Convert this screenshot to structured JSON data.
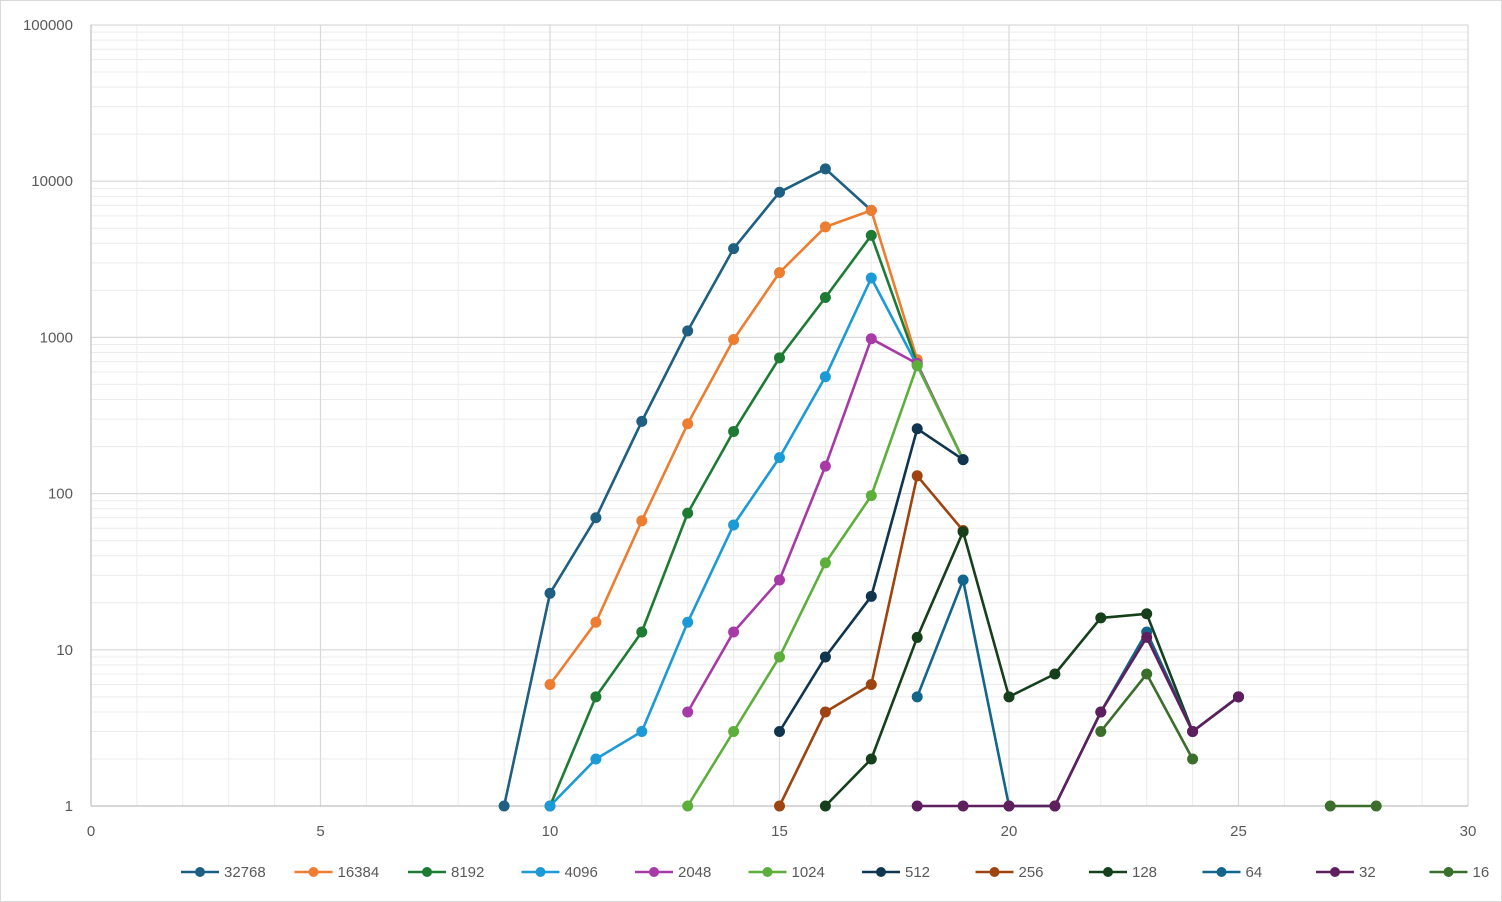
{
  "chart_data": {
    "type": "line",
    "title": "",
    "xlabel": "",
    "ylabel": "",
    "x_scale": "linear",
    "y_scale": "log",
    "xlim": [
      0,
      30
    ],
    "ylim": [
      1,
      100000
    ],
    "x_ticks": [
      "0",
      "5",
      "10",
      "15",
      "20",
      "25",
      "30"
    ],
    "y_ticks": [
      "1",
      "10",
      "100",
      "1000",
      "10000",
      "100000"
    ],
    "grid": true,
    "legend_position": "bottom",
    "series": [
      {
        "name": "32768",
        "color": "#1f5f82",
        "points": [
          [
            9,
            1
          ],
          [
            10,
            23
          ],
          [
            11,
            70
          ],
          [
            12,
            290
          ],
          [
            13,
            1100
          ],
          [
            14,
            3700
          ],
          [
            15,
            8500
          ],
          [
            16,
            12000
          ],
          [
            17,
            6500
          ]
        ]
      },
      {
        "name": "16384",
        "color": "#ed7d31",
        "points": [
          [
            10,
            6
          ],
          [
            11,
            15
          ],
          [
            12,
            67
          ],
          [
            13,
            280
          ],
          [
            14,
            970
          ],
          [
            15,
            2600
          ],
          [
            16,
            5100
          ],
          [
            17,
            6500
          ],
          [
            18,
            720
          ]
        ]
      },
      {
        "name": "8192",
        "color": "#1e7b34",
        "points": [
          [
            10,
            1
          ],
          [
            11,
            5
          ],
          [
            12,
            13
          ],
          [
            13,
            75
          ],
          [
            14,
            250
          ],
          [
            15,
            740
          ],
          [
            16,
            1800
          ],
          [
            17,
            4500
          ],
          [
            18,
            680
          ]
        ]
      },
      {
        "name": "4096",
        "color": "#1c9ad6",
        "points": [
          [
            10,
            1
          ],
          [
            11,
            2
          ],
          [
            12,
            3
          ],
          [
            13,
            15
          ],
          [
            14,
            63
          ],
          [
            15,
            170
          ],
          [
            16,
            560
          ],
          [
            17,
            2400
          ],
          [
            18,
            660
          ]
        ]
      },
      {
        "name": "2048",
        "color": "#a83aa8",
        "points": [
          [
            13,
            4
          ],
          [
            14,
            13
          ],
          [
            15,
            28
          ],
          [
            16,
            150
          ],
          [
            17,
            980
          ],
          [
            18,
            680
          ],
          [
            19,
            165
          ]
        ]
      },
      {
        "name": "1024",
        "color": "#5daf3c",
        "points": [
          [
            13,
            1
          ],
          [
            14,
            3
          ],
          [
            15,
            9
          ],
          [
            16,
            36
          ],
          [
            17,
            97
          ],
          [
            18,
            660
          ],
          [
            19,
            165
          ]
        ]
      },
      {
        "name": "512",
        "color": "#10354f",
        "points": [
          [
            15,
            3
          ],
          [
            16,
            9
          ],
          [
            17,
            22
          ],
          [
            18,
            260
          ],
          [
            19,
            165
          ]
        ]
      },
      {
        "name": "256",
        "color": "#9e4410",
        "points": [
          [
            15,
            1
          ],
          [
            16,
            4
          ],
          [
            17,
            6
          ],
          [
            18,
            130
          ],
          [
            19,
            58
          ]
        ]
      },
      {
        "name": "128",
        "color": "#16401c",
        "points": [
          [
            16,
            1
          ],
          [
            17,
            2
          ],
          [
            18,
            12
          ],
          [
            19,
            57
          ],
          [
            20,
            5
          ],
          [
            21,
            7
          ],
          [
            22,
            16
          ],
          [
            23,
            17
          ],
          [
            24,
            3
          ],
          [
            25,
            5
          ]
        ]
      },
      {
        "name": "64",
        "color": "#13658c",
        "points": [
          [
            18,
            5
          ],
          [
            19,
            28
          ],
          [
            20,
            1
          ],
          [
            21,
            1
          ],
          [
            22,
            4
          ],
          [
            23,
            13
          ],
          [
            24,
            3
          ],
          [
            25,
            5
          ]
        ]
      },
      {
        "name": "32",
        "color": "#5e1f5e",
        "points": [
          [
            18,
            1
          ],
          [
            19,
            1
          ],
          [
            20,
            1
          ],
          [
            21,
            1
          ],
          [
            22,
            4
          ],
          [
            23,
            12
          ],
          [
            24,
            3
          ],
          [
            25,
            5
          ]
        ]
      },
      {
        "name": "16",
        "color": "#3b6e2a",
        "points": [
          [
            22,
            3
          ],
          [
            23,
            7
          ],
          [
            24,
            2
          ],
          [
            27,
            1
          ],
          [
            28,
            1
          ]
        ]
      }
    ]
  }
}
